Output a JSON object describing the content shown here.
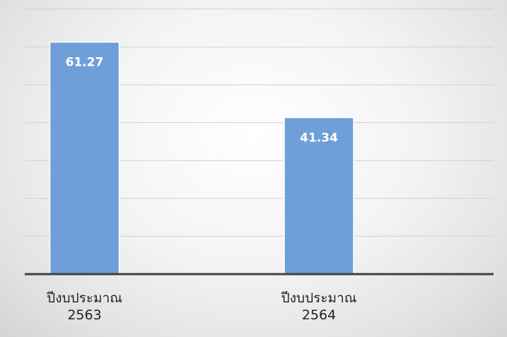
{
  "chart_data": {
    "type": "bar",
    "categories": [
      [
        "ปีงบประมาณ",
        "2563"
      ],
      [
        "ปีงบประมาณ",
        "2564"
      ]
    ],
    "values": [
      61.27,
      41.34
    ],
    "data_labels": [
      "61.27",
      "41.34"
    ],
    "ylim": [
      0,
      70
    ],
    "ytick_step": 10,
    "grid": true,
    "legend": "none",
    "bar_color": "#6f9fd8",
    "axis_color": "#404040",
    "grid_color": "#d0d0d0"
  }
}
